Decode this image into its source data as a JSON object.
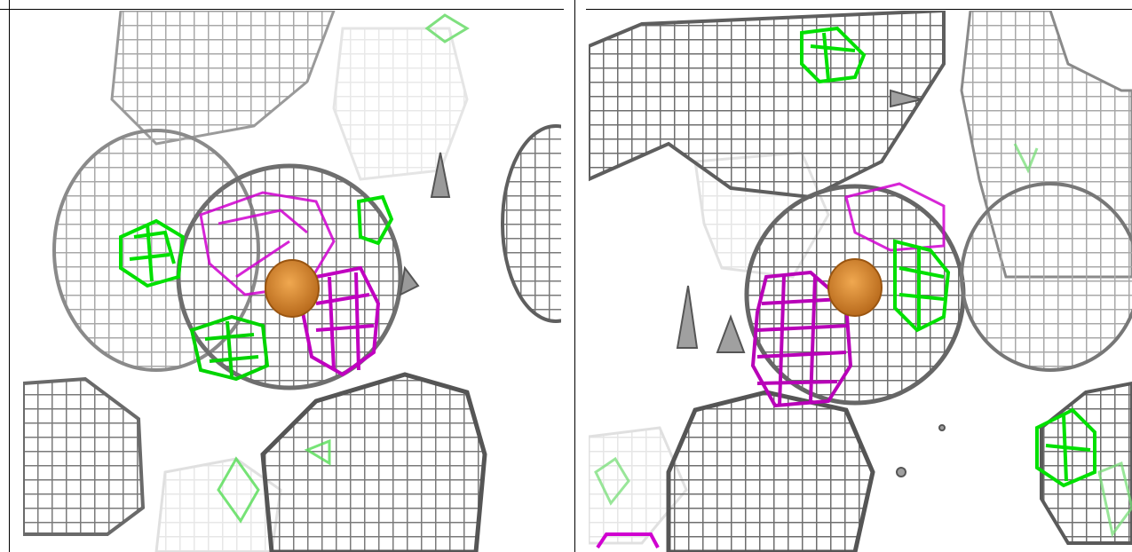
{
  "figure": {
    "panels": [
      {
        "id": "left",
        "label": ""
      },
      {
        "id": "right",
        "label": ""
      }
    ],
    "colors": {
      "mesh_grey": "#a8a8a8",
      "mesh_dark": "#6f6f6f",
      "positive_density": "#00e000",
      "negative_density": "#d000d0",
      "metal_ion": "#d9822b",
      "background": "#ffffff"
    },
    "icons": {
      "mesh": "wireframe-electron-density-mesh",
      "ion": "orange-sphere"
    }
  }
}
